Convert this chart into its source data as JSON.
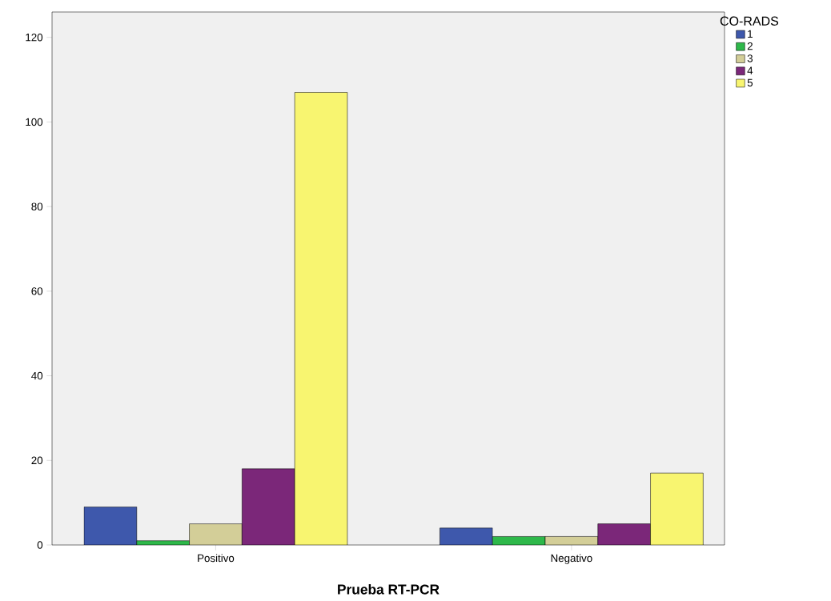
{
  "chart_data": {
    "type": "bar",
    "xlabel": "**Prueba RT-PCR**",
    "legend_title": "CO-RADS",
    "categories": [
      "Positivo",
      "Negativo"
    ],
    "series": [
      {
        "name": "1",
        "color": "#3e58ac",
        "values": [
          9,
          4
        ]
      },
      {
        "name": "2",
        "color": "#2eb84a",
        "values": [
          1,
          2
        ]
      },
      {
        "name": "3",
        "color": "#d3ce98",
        "values": [
          5,
          2
        ]
      },
      {
        "name": "4",
        "color": "#7b2779",
        "values": [
          18,
          5
        ]
      },
      {
        "name": "5",
        "color": "#f8f570",
        "values": [
          107,
          17
        ]
      }
    ],
    "ylim": [
      0,
      126
    ],
    "yticks": [
      0,
      20,
      40,
      60,
      80,
      100,
      120
    ],
    "grid": false,
    "legend": "top right"
  }
}
